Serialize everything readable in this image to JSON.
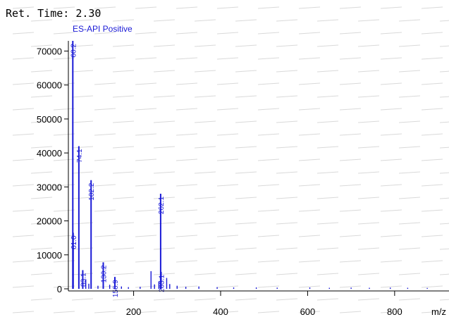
{
  "header": {
    "ret_time_label": "Ret. Time: 2.30"
  },
  "colors": {
    "series": "#1a1ad6",
    "axis": "#000000",
    "watermark": "#d9d9d9"
  },
  "chart_data": {
    "type": "bar",
    "series_label": "ES-API Positive",
    "xlabel": "m/z",
    "xlim": [
      50,
      925
    ],
    "ylim": [
      -2000,
      76000
    ],
    "xticks": [
      200,
      400,
      600,
      800
    ],
    "yticks": [
      0,
      10000,
      20000,
      30000,
      40000,
      50000,
      60000,
      70000
    ],
    "peaks": [
      {
        "mz": 60.2,
        "intensity": 73000,
        "label": "60.2"
      },
      {
        "mz": 61.0,
        "intensity": 16500,
        "label": "61.0"
      },
      {
        "mz": 74.1,
        "intensity": 42000,
        "label": "74.1"
      },
      {
        "mz": 83.1,
        "intensity": 5500,
        "label": "83.1"
      },
      {
        "mz": 102.2,
        "intensity": 32000,
        "label": "102.2"
      },
      {
        "mz": 130.2,
        "intensity": 7800,
        "label": "130.2"
      },
      {
        "mz": 156.9,
        "intensity": 3500,
        "label": "156.9"
      },
      {
        "mz": 262.1,
        "intensity": 28000,
        "label": "262.1"
      },
      {
        "mz": 263.1,
        "intensity": 5000,
        "label": "263.1"
      }
    ],
    "minor_peaks": [
      {
        "mz": 90,
        "intensity": 2800
      },
      {
        "mz": 97,
        "intensity": 1500
      },
      {
        "mz": 118,
        "intensity": 900
      },
      {
        "mz": 145,
        "intensity": 1200
      },
      {
        "mz": 172,
        "intensity": 700
      },
      {
        "mz": 188,
        "intensity": 500
      },
      {
        "mz": 215,
        "intensity": 600
      },
      {
        "mz": 240,
        "intensity": 5200
      },
      {
        "mz": 248,
        "intensity": 1300
      },
      {
        "mz": 258,
        "intensity": 2200
      },
      {
        "mz": 276,
        "intensity": 3200
      },
      {
        "mz": 283,
        "intensity": 1400
      },
      {
        "mz": 300,
        "intensity": 900
      },
      {
        "mz": 320,
        "intensity": 600
      },
      {
        "mz": 350,
        "intensity": 700
      },
      {
        "mz": 392,
        "intensity": 500
      },
      {
        "mz": 430,
        "intensity": 400
      },
      {
        "mz": 482,
        "intensity": 400
      },
      {
        "mz": 530,
        "intensity": 350
      },
      {
        "mz": 605,
        "intensity": 400
      },
      {
        "mz": 650,
        "intensity": 300
      },
      {
        "mz": 700,
        "intensity": 350
      },
      {
        "mz": 742,
        "intensity": 300
      },
      {
        "mz": 790,
        "intensity": 350
      },
      {
        "mz": 830,
        "intensity": 300
      },
      {
        "mz": 875,
        "intensity": 250
      }
    ]
  }
}
